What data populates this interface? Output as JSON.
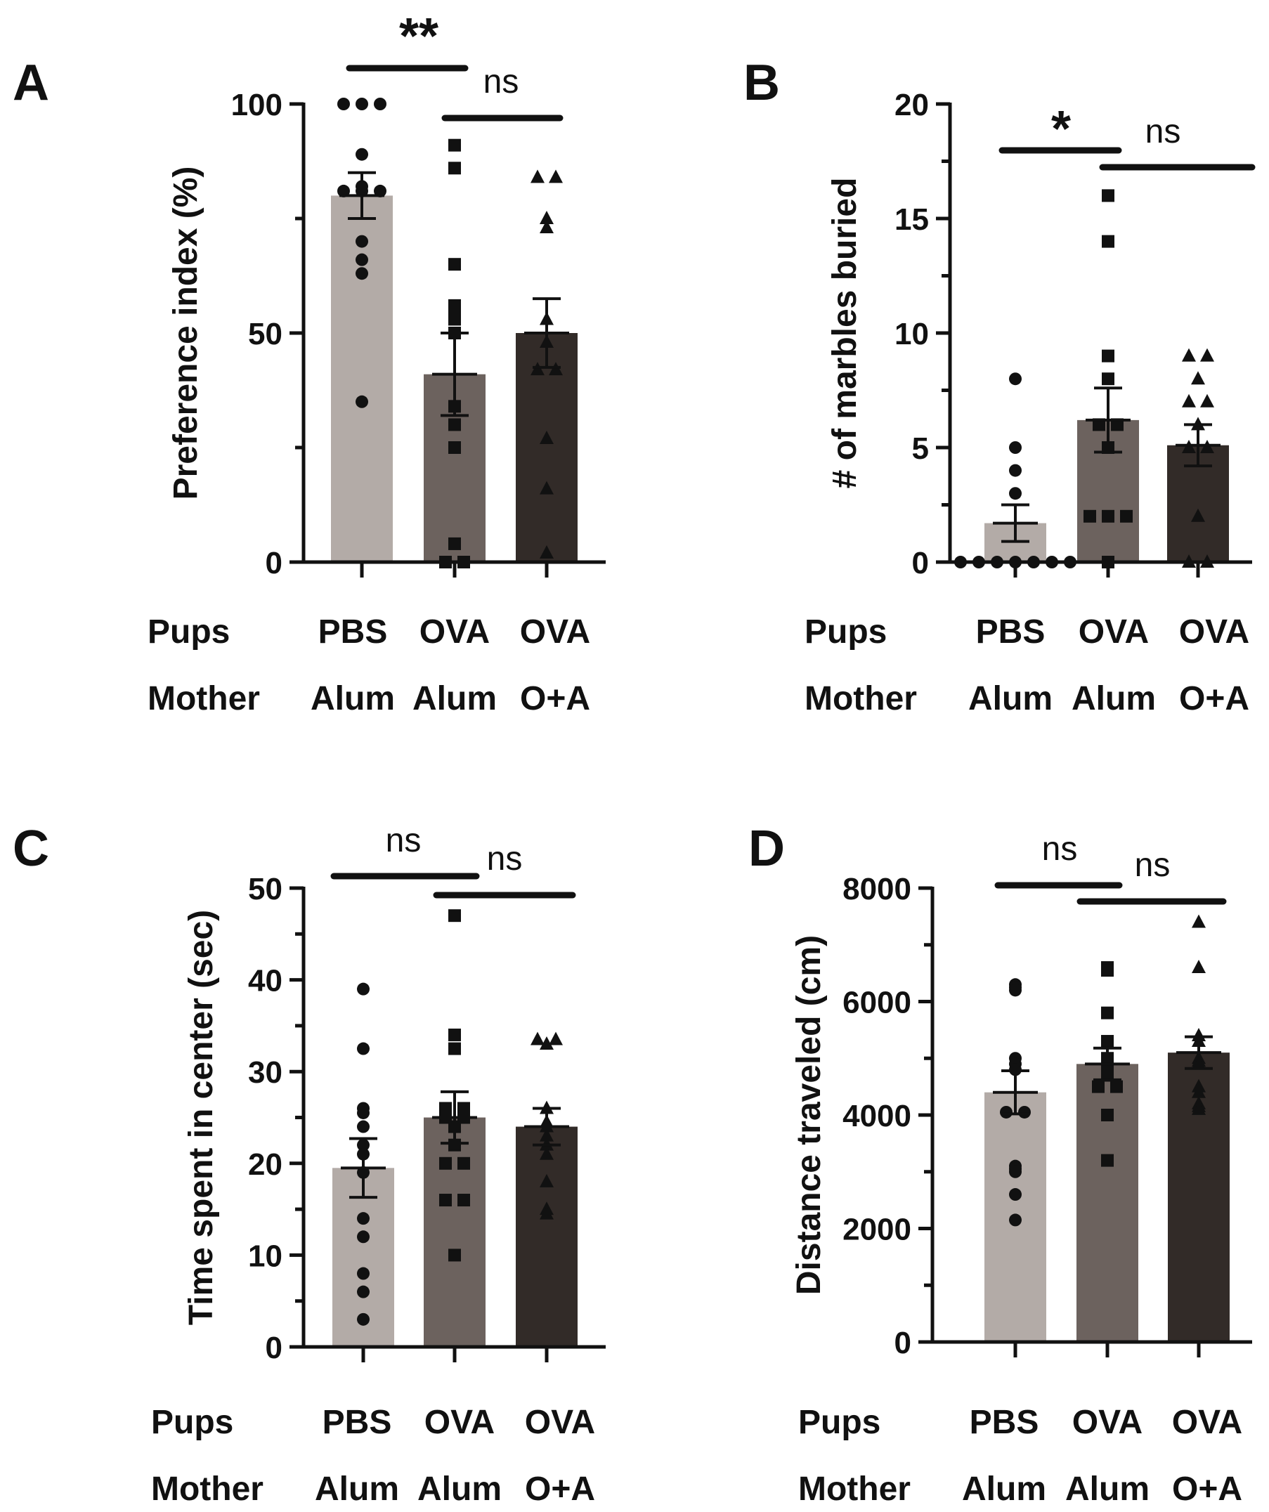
{
  "colors": {
    "pbs_alum": "#b3aba7",
    "ova_alum": "#6c625e",
    "ova_oa": "#322b28",
    "ink": "#111111"
  },
  "group_rows": {
    "pups_label": "Pups",
    "mother_label": "Mother",
    "pups": [
      "PBS",
      "OVA",
      "OVA"
    ],
    "mother": [
      "Alum",
      "Alum",
      "O+A"
    ]
  },
  "chart_data": [
    {
      "panel": "A",
      "type": "bar",
      "ylabel": "Preference index (%)",
      "ylim": [
        0,
        100
      ],
      "yticks": [
        0,
        50,
        100
      ],
      "categories": [
        "PBS / Alum",
        "OVA / Alum",
        "OVA / O+A"
      ],
      "values": [
        80,
        41,
        50
      ],
      "sem": [
        5,
        9,
        7.5
      ],
      "markers": [
        "circle",
        "square",
        "triangle"
      ],
      "points": [
        [
          100,
          100,
          100,
          89,
          81,
          81,
          81,
          82,
          70,
          66,
          63,
          35
        ],
        [
          91,
          86,
          65,
          56,
          54,
          53,
          50,
          34,
          30,
          25,
          4,
          0,
          0
        ],
        [
          84,
          84,
          75,
          73,
          53,
          48,
          42,
          42,
          27,
          16,
          2
        ]
      ],
      "significance": [
        {
          "from": 0,
          "to": 1,
          "label": "**"
        },
        {
          "from": 1,
          "to": 2,
          "label": "ns"
        }
      ]
    },
    {
      "panel": "B",
      "type": "bar",
      "ylabel": "# of marbles buried",
      "ylim": [
        0,
        20
      ],
      "yticks": [
        0,
        5,
        10,
        15,
        20
      ],
      "categories": [
        "PBS / Alum",
        "OVA / Alum",
        "OVA / O+A"
      ],
      "values": [
        1.7,
        6.2,
        5.1
      ],
      "sem": [
        0.8,
        1.4,
        0.9
      ],
      "markers": [
        "circle",
        "square",
        "triangle"
      ],
      "points": [
        [
          8,
          5,
          4,
          3,
          0,
          0,
          0,
          0,
          0,
          0,
          0
        ],
        [
          16,
          14,
          9,
          8,
          6,
          6,
          5,
          2,
          2,
          2,
          0
        ],
        [
          9,
          9,
          8,
          7,
          7,
          6,
          5,
          5,
          2,
          0,
          0
        ]
      ],
      "significance": [
        {
          "from": 0,
          "to": 1,
          "label": "*"
        },
        {
          "from": 1,
          "to": 2,
          "label": "ns"
        }
      ]
    },
    {
      "panel": "C",
      "type": "bar",
      "ylabel": "Time spent in center (sec)",
      "ylim": [
        0,
        50
      ],
      "yticks": [
        0,
        10,
        20,
        30,
        40,
        50
      ],
      "categories": [
        "PBS / Alum",
        "OVA / Alum",
        "OVA / O+A"
      ],
      "values": [
        19.5,
        25,
        24
      ],
      "sem": [
        3.2,
        2.8,
        2
      ],
      "markers": [
        "circle",
        "square",
        "triangle"
      ],
      "points": [
        [
          39,
          32.5,
          26,
          25.5,
          24,
          22,
          21,
          19,
          14,
          12,
          8,
          6,
          3
        ],
        [
          47,
          34,
          32.5,
          26,
          26,
          25,
          25,
          24,
          22,
          20,
          20,
          16,
          16,
          10
        ],
        [
          33.5,
          33.5,
          33,
          26,
          24.5,
          24,
          23,
          22,
          21,
          18,
          15,
          14.5
        ]
      ],
      "significance": [
        {
          "from": 0,
          "to": 1,
          "label": "ns"
        },
        {
          "from": 1,
          "to": 2,
          "label": "ns"
        }
      ]
    },
    {
      "panel": "D",
      "type": "bar",
      "ylabel": "Distance traveled (cm)",
      "ylim": [
        0,
        8000
      ],
      "yticks": [
        0,
        2000,
        4000,
        6000,
        8000
      ],
      "categories": [
        "PBS / Alum",
        "OVA / Alum",
        "OVA / O+A"
      ],
      "values": [
        4400,
        4900,
        5100
      ],
      "sem": [
        380,
        280,
        280
      ],
      "markers": [
        "circle",
        "square",
        "triangle"
      ],
      "points": [
        [
          6300,
          6250,
          6200,
          5000,
          4900,
          4800,
          4050,
          4050,
          3100,
          3050,
          3000,
          2600,
          2150
        ],
        [
          6600,
          6550,
          5800,
          5300,
          5000,
          4950,
          4900,
          4700,
          4500,
          4500,
          4000,
          3200
        ],
        [
          7400,
          6600,
          5400,
          5300,
          5000,
          4950,
          4900,
          4500,
          4400,
          4200,
          4150,
          4100
        ]
      ],
      "significance": [
        {
          "from": 0,
          "to": 1,
          "label": "ns"
        },
        {
          "from": 1,
          "to": 2,
          "label": "ns"
        }
      ]
    }
  ]
}
